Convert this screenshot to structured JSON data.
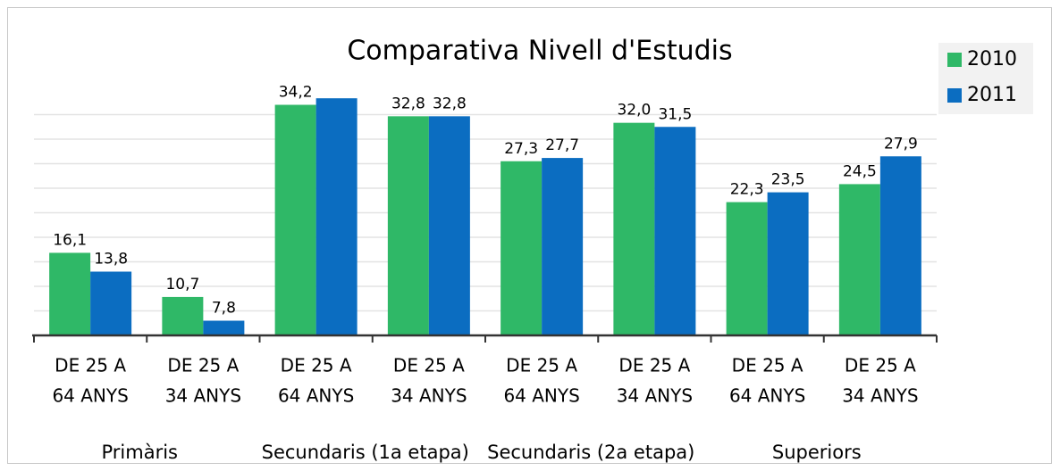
{
  "chart_data": {
    "type": "bar",
    "title": "Comparativa Nivell d'Estudis",
    "categories": [
      [
        "DE 25 A",
        "64 ANYS"
      ],
      [
        "DE 25 A",
        "34 ANYS"
      ],
      [
        "DE 25 A",
        "64 ANYS"
      ],
      [
        "DE 25 A",
        "34 ANYS"
      ],
      [
        "DE 25 A",
        "64 ANYS"
      ],
      [
        "DE 25 A",
        "34 ANYS"
      ],
      [
        "DE 25 A",
        "64 ANYS"
      ],
      [
        "DE 25 A",
        "34 ANYS"
      ]
    ],
    "groups": [
      "Primàris",
      "Secundaris (1a etapa)",
      "Secundaris (2a etapa)",
      "Superiors"
    ],
    "series": [
      {
        "name": "2010",
        "color": "#2fb867",
        "values": [
          16.1,
          10.7,
          34.2,
          32.8,
          27.3,
          32.0,
          22.3,
          24.5
        ],
        "value_labels": [
          "16,1",
          "10,7",
          "34,2",
          "32,8",
          "27,3",
          "32,0",
          "22,3",
          "24,5"
        ]
      },
      {
        "name": "2011",
        "color": "#0b6dc1",
        "values": [
          13.8,
          7.8,
          35.0,
          32.8,
          27.7,
          31.5,
          23.5,
          27.9
        ],
        "value_labels": [
          "13,8",
          "7,8",
          "",
          "32,8",
          "27,7",
          "31,5",
          "23,5",
          "27,9"
        ]
      }
    ],
    "ylim": [
      6,
      36
    ],
    "yticks": [
      6,
      9,
      12,
      15,
      18,
      21,
      24,
      27,
      30,
      33
    ],
    "grid": true,
    "legend": "top-right"
  }
}
